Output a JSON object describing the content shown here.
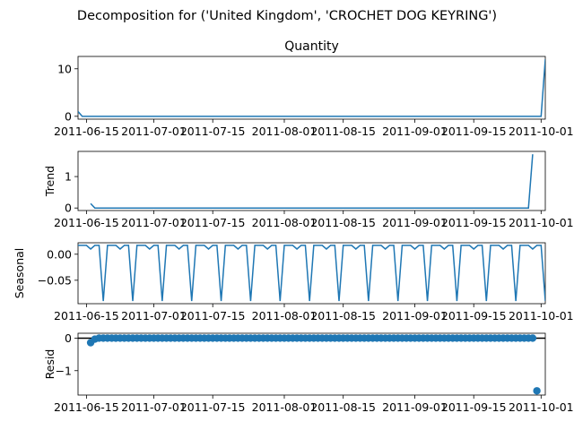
{
  "suptitle": "Decomposition for ('United Kingdom', 'CROCHET DOG KEYRING')",
  "line_color": "#1f77b4",
  "x_tick_labels": [
    "2011-06-15",
    "2011-07-01",
    "2011-07-15",
    "2011-08-01",
    "2011-08-15",
    "2011-09-01",
    "2011-09-15",
    "2011-10-01"
  ],
  "chart_data": [
    {
      "type": "line",
      "title": "Quantity",
      "ylabel": "",
      "x_start": "2011-06-13",
      "x_end": "2011-10-03",
      "ylim": [
        -0.6,
        12.6
      ],
      "yticks": [
        0,
        10
      ],
      "ytick_labels": [
        "0",
        "10"
      ],
      "x_days_offset": [
        0,
        1,
        110,
        111
      ],
      "values": [
        1,
        0,
        0,
        12
      ]
    },
    {
      "type": "line",
      "title": "",
      "ylabel": "Trend",
      "x_start": "2011-06-13",
      "x_end": "2011-10-03",
      "ylim": [
        -0.08,
        1.8
      ],
      "yticks": [
        0,
        1
      ],
      "ytick_labels": [
        "0",
        "1"
      ],
      "x_days_offset": [
        3,
        4,
        107,
        108
      ],
      "values": [
        0.14,
        0.0,
        0.0,
        1.71
      ]
    },
    {
      "type": "line",
      "title": "",
      "ylabel": "Seasonal",
      "ylim": [
        -0.095,
        0.022
      ],
      "yticks": [
        0.0,
        -0.05
      ],
      "ytick_labels": [
        "0.00",
        "−0.05"
      ],
      "period_days": 7,
      "pattern": [
        0.017,
        0.017,
        0.017,
        0.01,
        0.017,
        0.017,
        -0.09
      ],
      "x_days_offset_first": 0,
      "x_days_offset_last": 111
    },
    {
      "type": "scatter",
      "title": "",
      "ylabel": "Resid",
      "ylim": [
        -1.75,
        0.15
      ],
      "yticks": [
        0,
        -1
      ],
      "ytick_labels": [
        "0",
        "−1"
      ],
      "baseline": 0,
      "x_days_offset_range": [
        3,
        108
      ],
      "points": [
        {
          "x": 3,
          "y": -0.14
        },
        {
          "x": 4,
          "y": -0.03
        },
        {
          "x": 108,
          "y": 0.0
        },
        {
          "x": 109,
          "y": -1.62
        }
      ],
      "default_y": 0.0
    }
  ]
}
